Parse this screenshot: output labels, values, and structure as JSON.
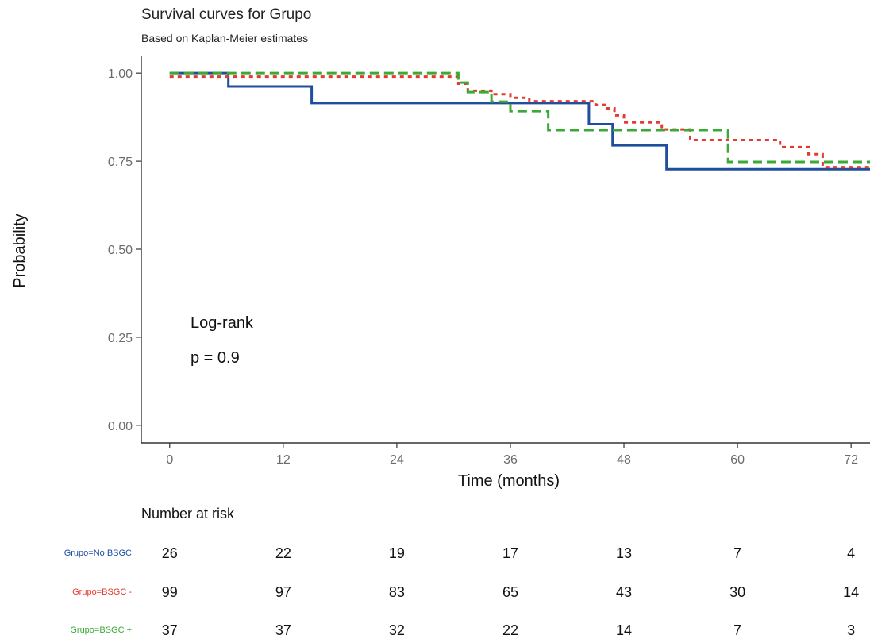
{
  "chart_data": {
    "type": "line",
    "title": "Survival curves for Grupo",
    "subtitle": "Based on Kaplan-Meier estimates",
    "xlabel": "Time (months)",
    "ylabel": "Probability",
    "xlim": [
      -3,
      74
    ],
    "ylim": [
      -0.05,
      1.05
    ],
    "xticks": [
      0,
      12,
      24,
      36,
      48,
      60,
      72
    ],
    "yticks": [
      0,
      0.25,
      0.5,
      0.75,
      1
    ],
    "xtick_labels": [
      "0",
      "12",
      "24",
      "36",
      "48",
      "60",
      "72"
    ],
    "ytick_labels": [
      "0.00",
      "0.25",
      "0.50",
      "0.75",
      "1.00"
    ],
    "grid": false,
    "annotation": {
      "line1": "Log-rank",
      "line2": "p = 0.9"
    },
    "series": [
      {
        "name": "Grupo=No BSGC",
        "color": "#1f4e9c",
        "dash": "solid",
        "x": [
          0,
          6.2,
          15,
          44.3,
          46.8,
          52.5,
          74
        ],
        "y": [
          1,
          0.962,
          0.915,
          0.855,
          0.795,
          0.727,
          0.727
        ]
      },
      {
        "name": "Grupo=BSGC -",
        "color": "#e33b2f",
        "dash": "dotted",
        "x": [
          0,
          30.5,
          31.5,
          34,
          36,
          38,
          45,
          46,
          47,
          48,
          52,
          55,
          64.5,
          67.5,
          69,
          74
        ],
        "y": [
          0.99,
          0.97,
          0.95,
          0.94,
          0.93,
          0.92,
          0.91,
          0.9,
          0.88,
          0.86,
          0.84,
          0.81,
          0.79,
          0.77,
          0.733,
          0.733
        ]
      },
      {
        "name": "Grupo=BSGC +",
        "color": "#3aaa35",
        "dash": "dashed",
        "x": [
          0,
          30.5,
          31.5,
          34,
          36,
          40,
          59,
          74
        ],
        "y": [
          1,
          0.973,
          0.946,
          0.919,
          0.892,
          0.838,
          0.748,
          0.748
        ]
      }
    ]
  },
  "risk_table": {
    "title": "Number at risk",
    "times": [
      0,
      12,
      24,
      36,
      48,
      60,
      72
    ],
    "rows": [
      {
        "label": "Grupo=No BSGC",
        "color": "#1f4e9c",
        "values": [
          "26",
          "22",
          "19",
          "17",
          "13",
          "7",
          "4"
        ]
      },
      {
        "label": "Grupo=BSGC -",
        "color": "#e33b2f",
        "values": [
          "99",
          "97",
          "83",
          "65",
          "43",
          "30",
          "14"
        ]
      },
      {
        "label": "Grupo=BSGC +",
        "color": "#3aaa35",
        "values": [
          "37",
          "37",
          "32",
          "22",
          "14",
          "7",
          "3"
        ]
      }
    ]
  }
}
